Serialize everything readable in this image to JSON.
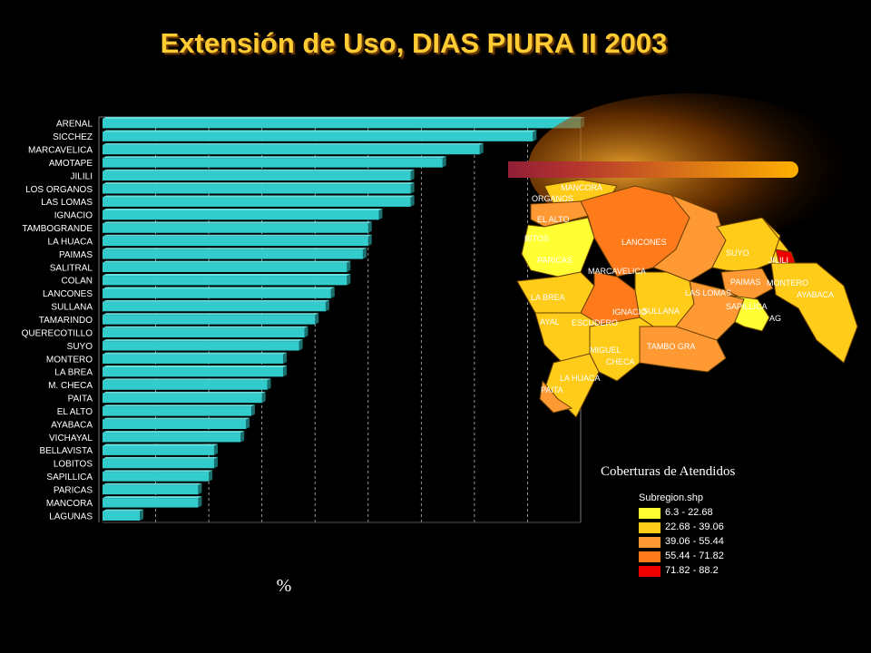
{
  "title": "Extensión de Uso, DIAS PIURA II 2003",
  "chart_data": {
    "type": "bar",
    "orientation": "horizontal",
    "title": "Extensión de Uso, DIAS PIURA II 2003",
    "xlabel": "%",
    "ylabel": "",
    "categories": [
      "ARENAL",
      "SICCHEZ",
      "MARCAVELICA",
      "AMOTAPE",
      "JILILI",
      "LOS ORGANOS",
      "LAS LOMAS",
      "IGNACIO",
      "TAMBOGRANDE",
      "LA HUACA",
      "PAIMAS",
      "SALITRAL",
      "COLAN",
      "LANCONES",
      "SULLANA",
      "TAMARINDO",
      "QUERECOTILLO",
      "SUYO",
      "MONTERO",
      "LA BREA",
      "M. CHECA",
      "PAITA",
      "EL ALTO",
      "AYABACA",
      "VICHAYAL",
      "BELLAVISTA",
      "LOBITOS",
      "SAPILLICA",
      "PARICAS",
      "MANCORA",
      "LAGUNAS"
    ],
    "values": [
      90,
      81,
      71,
      64,
      58,
      58,
      58,
      52,
      50,
      50,
      49,
      46,
      46,
      43,
      42,
      40,
      38,
      37,
      34,
      34,
      31,
      30,
      28,
      27,
      26,
      21,
      21,
      20,
      18,
      18,
      7
    ],
    "xlim": [
      0,
      90
    ],
    "grid": true,
    "bar_color": "#33cccc"
  },
  "legend": {
    "title": "Coberturas de Atendidos",
    "layer": "Subregion.shp",
    "items": [
      {
        "label": "6.3 - 22.68",
        "color": "#ffff33"
      },
      {
        "label": "22.68 - 39.06",
        "color": "#ffcc1a"
      },
      {
        "label": "39.06 - 55.44",
        "color": "#ff9933"
      },
      {
        "label": "55.44 - 71.82",
        "color": "#ff7a1a"
      },
      {
        "label": "71.82 - 88.2",
        "color": "#ee0000"
      }
    ]
  },
  "map": {
    "labels": [
      "MANCORA",
      "ORGANOS",
      "EL ALTO",
      "BITOS",
      "PARICAS",
      "LANCONES",
      "MARCAVELICA",
      "SUYO",
      "JILILI",
      "PAIMAS",
      "MONTERO",
      "AYABACA",
      "LA BREA",
      "LAS LOMAS",
      "SULLANA",
      "IGNACIO",
      "ESCUDERO",
      "SAPILLICA",
      "AYAL",
      "MIGUEL",
      "CHECA",
      "TAMBO GRA",
      "LA HUACA",
      "PAITA",
      "AG"
    ]
  }
}
